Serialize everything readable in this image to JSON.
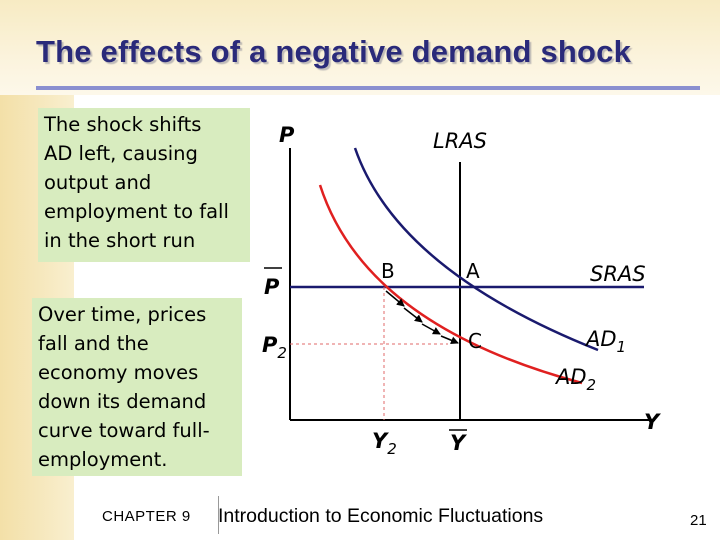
{
  "slide": {
    "title": "The effects of a negative demand shock",
    "note1_lines": [
      "The shock shifts",
      "AD left, causing",
      "output and",
      "employment to fall",
      "in the short run"
    ],
    "note2_lines": [
      "Over time, prices",
      "fall and the",
      "economy moves",
      "down its demand",
      "curve toward full-",
      "employment."
    ]
  },
  "diagram": {
    "axis_y_label": "P",
    "axis_x_label": "Y",
    "lras_label": "LRAS",
    "sras_label": "SRAS",
    "ad1_label": "AD",
    "ad1_sub": "1",
    "ad2_label": "AD",
    "ad2_sub": "2",
    "pbar_label": "P",
    "p2_label": "P",
    "p2_sub": "2",
    "y2_label": "Y",
    "y2_sub": "2",
    "ybar_label": "Y",
    "point_a": "A",
    "point_b": "B",
    "point_c": "C",
    "colors": {
      "ad1": "#1a1a6e",
      "ad2": "#e02020",
      "sras": "#1a1a6e",
      "lras": "#000000",
      "arrows": "#000000"
    }
  },
  "footer": {
    "chapter": "CHAPTER 9",
    "title": "Introduction to Economic Fluctuations",
    "slide_number": "21"
  }
}
